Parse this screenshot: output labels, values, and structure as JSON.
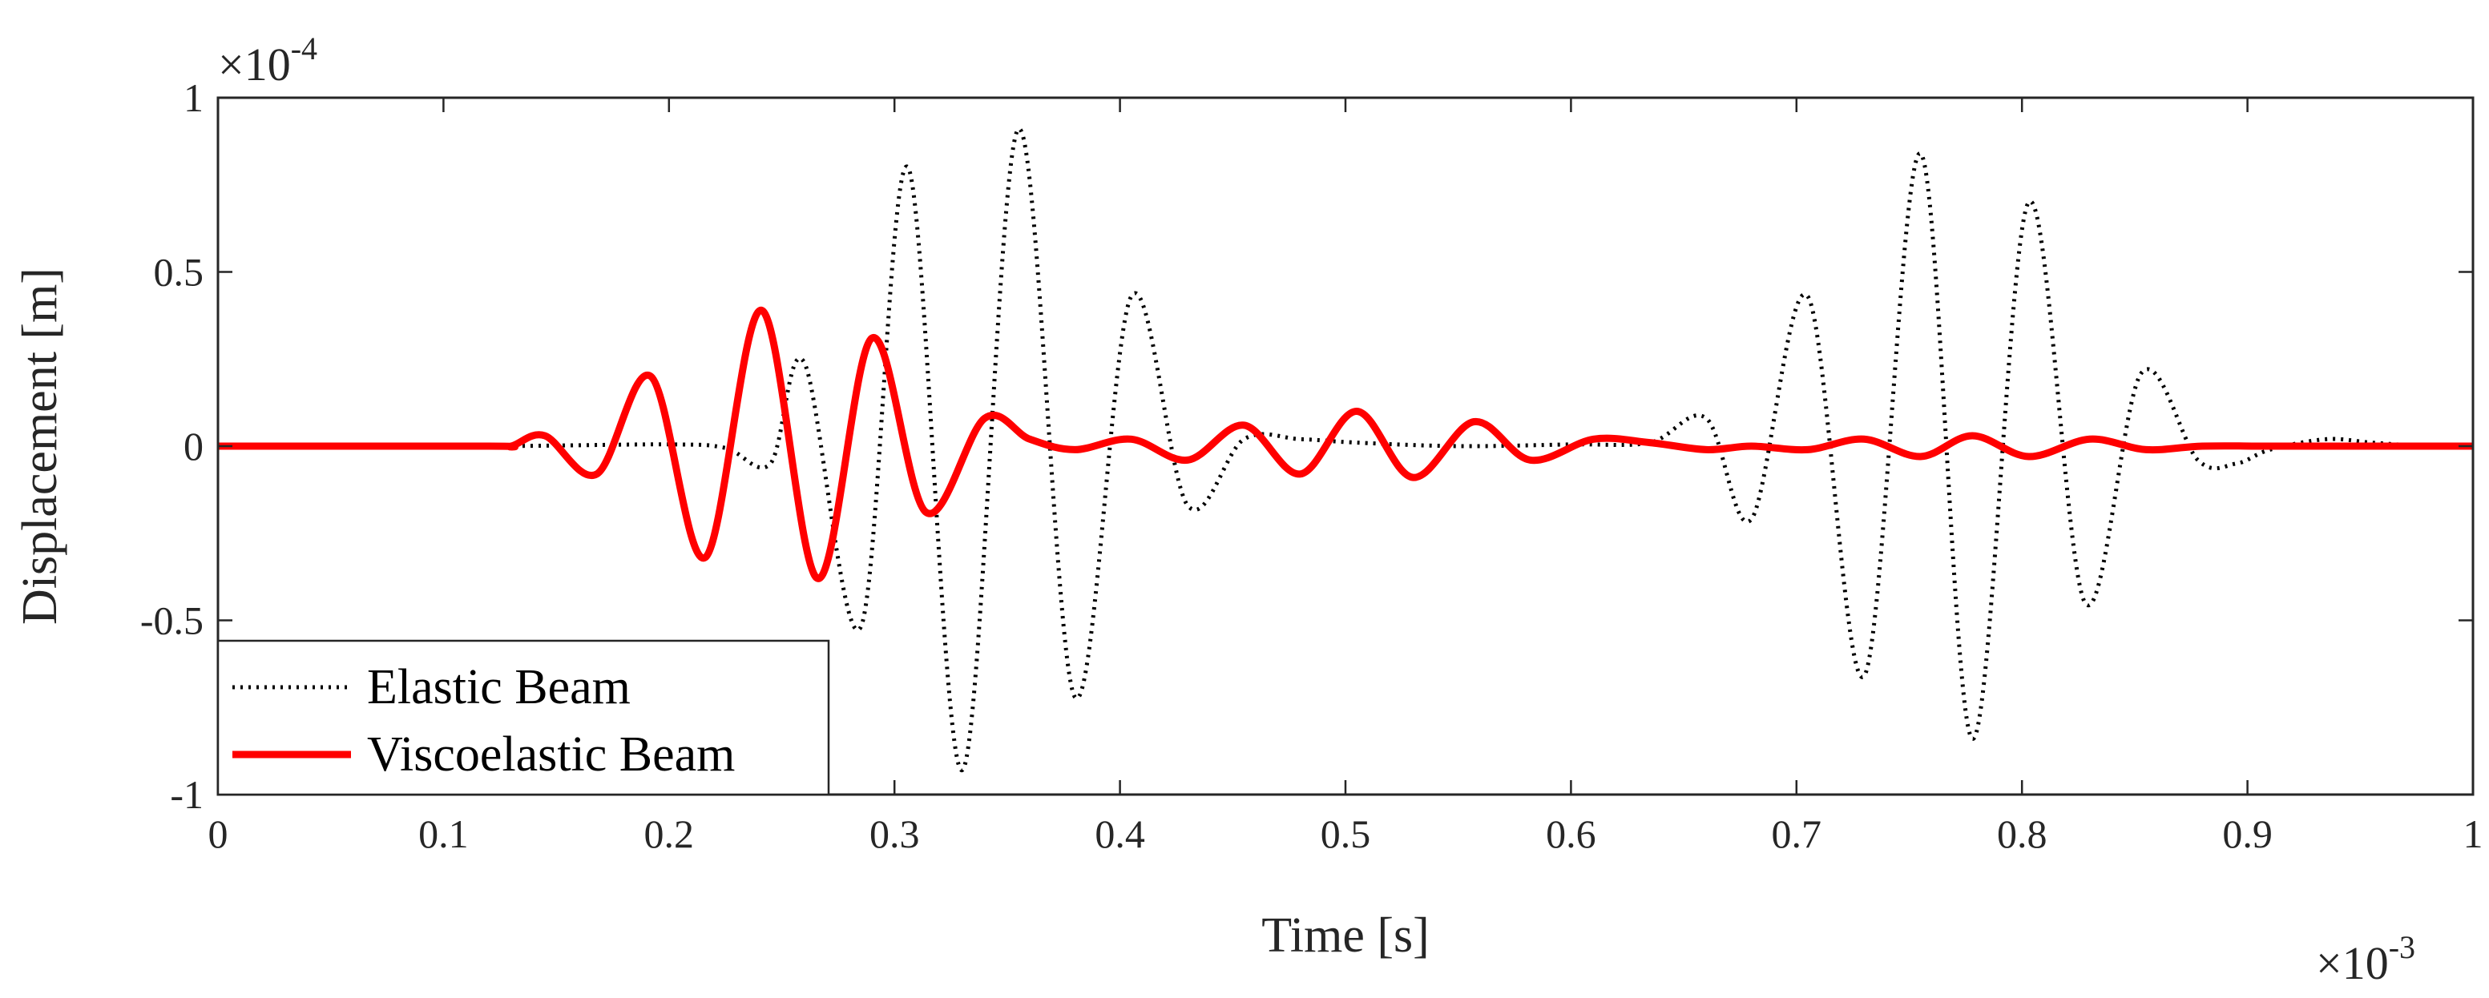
{
  "chart_data": {
    "type": "line",
    "xlabel": "Time [s]",
    "ylabel": "Displacement [m]",
    "x_multiplier": {
      "base": "×10",
      "exponent": "-3"
    },
    "y_multiplier": {
      "base": "×10",
      "exponent": "-4"
    },
    "xlim": [
      0,
      1
    ],
    "ylim": [
      -1,
      1
    ],
    "x_ticks": [
      "0",
      "0.1",
      "0.2",
      "0.3",
      "0.4",
      "0.5",
      "0.6",
      "0.7",
      "0.8",
      "0.9",
      "1"
    ],
    "x_tick_values": [
      0,
      0.1,
      0.2,
      0.3,
      0.4,
      0.5,
      0.6,
      0.7,
      0.8,
      0.9,
      1
    ],
    "y_ticks": [
      "-1",
      "-0.5",
      "0",
      "0.5",
      "1"
    ],
    "y_tick_values": [
      -1,
      -0.5,
      0,
      0.5,
      1
    ],
    "grid": false,
    "legend_position": "bottom-left",
    "series": [
      {
        "name": "Elastic Beam",
        "color": "#000000",
        "style": "dotted",
        "points": [
          [
            0,
            0
          ],
          [
            0.12,
            0
          ],
          [
            0.2,
            0.005
          ],
          [
            0.225,
            -0.005
          ],
          [
            0.245,
            -0.05
          ],
          [
            0.26,
            0.24
          ],
          [
            0.285,
            -0.52
          ],
          [
            0.306,
            0.8
          ],
          [
            0.33,
            -0.93
          ],
          [
            0.355,
            0.91
          ],
          [
            0.38,
            -0.72
          ],
          [
            0.405,
            0.43
          ],
          [
            0.43,
            -0.17
          ],
          [
            0.455,
            0.02
          ],
          [
            0.48,
            0.02
          ],
          [
            0.505,
            0.01
          ],
          [
            0.55,
            0.0
          ],
          [
            0.6,
            0.005
          ],
          [
            0.635,
            0.01
          ],
          [
            0.66,
            0.08
          ],
          [
            0.68,
            -0.21
          ],
          [
            0.705,
            0.43
          ],
          [
            0.73,
            -0.66
          ],
          [
            0.755,
            0.84
          ],
          [
            0.778,
            -0.84
          ],
          [
            0.803,
            0.7
          ],
          [
            0.828,
            -0.45
          ],
          [
            0.853,
            0.21
          ],
          [
            0.878,
            -0.04
          ],
          [
            0.895,
            -0.05
          ],
          [
            0.91,
            -0.01
          ],
          [
            0.935,
            0.02
          ],
          [
            0.955,
            0.01
          ],
          [
            0.98,
            0.0
          ],
          [
            1.0,
            0.0
          ]
        ]
      },
      {
        "name": "Viscoelastic Beam",
        "color": "#ff0000",
        "style": "solid",
        "points": [
          [
            0,
            0
          ],
          [
            0.12,
            0
          ],
          [
            0.13,
            0.0
          ],
          [
            0.145,
            0.03
          ],
          [
            0.168,
            -0.08
          ],
          [
            0.192,
            0.2
          ],
          [
            0.216,
            -0.32
          ],
          [
            0.241,
            0.39
          ],
          [
            0.266,
            -0.38
          ],
          [
            0.29,
            0.31
          ],
          [
            0.314,
            -0.19
          ],
          [
            0.34,
            0.08
          ],
          [
            0.36,
            0.02
          ],
          [
            0.38,
            -0.01
          ],
          [
            0.405,
            0.02
          ],
          [
            0.43,
            -0.04
          ],
          [
            0.455,
            0.06
          ],
          [
            0.48,
            -0.08
          ],
          [
            0.505,
            0.1
          ],
          [
            0.53,
            -0.09
          ],
          [
            0.557,
            0.07
          ],
          [
            0.582,
            -0.04
          ],
          [
            0.61,
            0.02
          ],
          [
            0.635,
            0.01
          ],
          [
            0.66,
            -0.01
          ],
          [
            0.68,
            0.0
          ],
          [
            0.705,
            -0.01
          ],
          [
            0.73,
            0.02
          ],
          [
            0.755,
            -0.03
          ],
          [
            0.778,
            0.03
          ],
          [
            0.803,
            -0.03
          ],
          [
            0.83,
            0.02
          ],
          [
            0.855,
            -0.01
          ],
          [
            0.88,
            0.0
          ],
          [
            0.91,
            0.0
          ],
          [
            0.95,
            0.0
          ],
          [
            1.0,
            0.0
          ]
        ]
      }
    ]
  }
}
